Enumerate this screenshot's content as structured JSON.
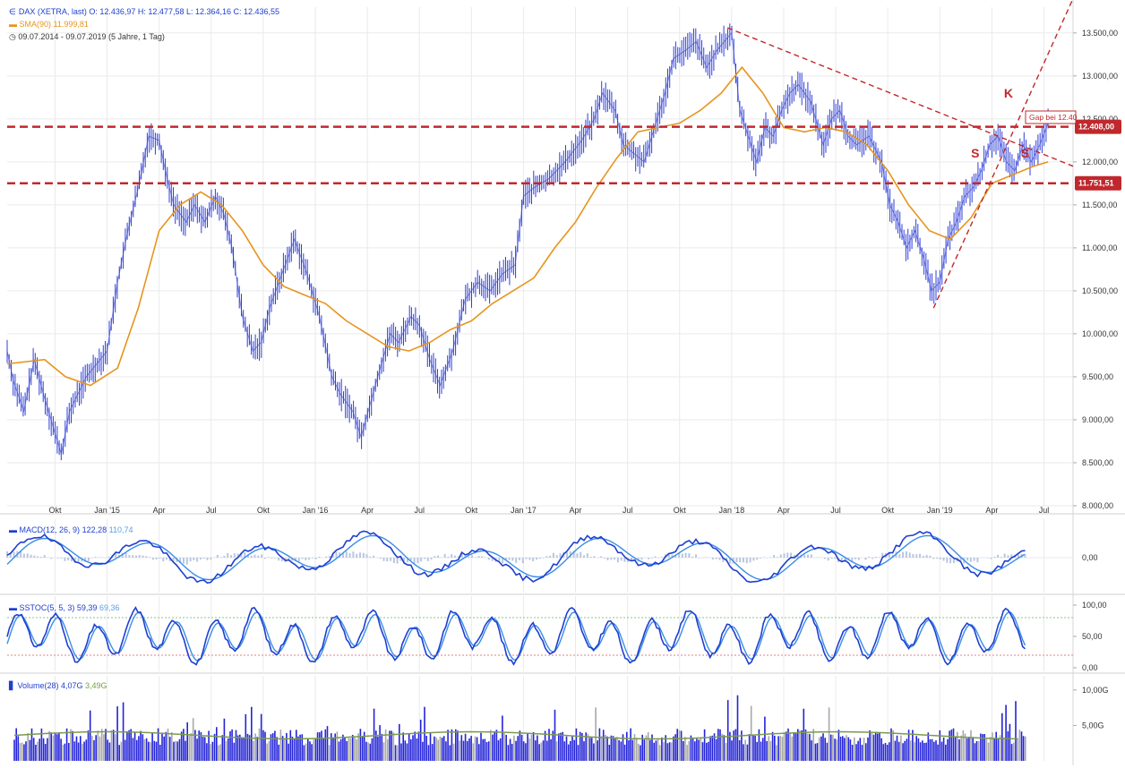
{
  "chart_data": [
    {
      "type": "line",
      "panel": "price",
      "title": "DAX (XETRA, last)",
      "ohlc_label": "O: 12.436,97  H: 12.477,58  L: 12.364,16  C: 12.436,55",
      "sma_label": "SMA(90)",
      "sma_value": "11.999,81",
      "period_label": "09.07.2014 - 09.07.2019  (5 Jahre, 1 Tag)",
      "ylim": [
        8000,
        13800
      ],
      "y_ticks": [
        "13.500,00",
        "13.000,00",
        "12.500,00",
        "12.000,00",
        "11.500,00",
        "11.000,00",
        "10.500,00",
        "10.000,00",
        "9.500,00",
        "9.000,00",
        "8.500,00",
        "8.000,00"
      ],
      "y_tick_values": [
        13500,
        13000,
        12500,
        12000,
        11500,
        11000,
        10500,
        10000,
        9500,
        9000,
        8500,
        8000
      ],
      "x_ticks": [
        "Okt",
        "Jan '15",
        "Apr",
        "Jul",
        "Okt",
        "Jan '16",
        "Apr",
        "Jul",
        "Okt",
        "Jan '17",
        "Apr",
        "Jul",
        "Okt",
        "Jan '18",
        "Apr",
        "Jul",
        "Okt",
        "Jan '19",
        "Apr",
        "Jul"
      ],
      "x_tick_values": [
        2014.75,
        2015.0,
        2015.25,
        2015.5,
        2015.75,
        2016.0,
        2016.25,
        2016.5,
        2016.75,
        2017.0,
        2017.25,
        2017.5,
        2017.75,
        2018.0,
        2018.25,
        2018.5,
        2018.75,
        2019.0,
        2019.25,
        2019.5
      ],
      "x_range": [
        2014.52,
        2019.64
      ],
      "series": [
        {
          "name": "DAX (XETRA, last)",
          "x": [
            2014.52,
            2014.55,
            2014.6,
            2014.65,
            2014.7,
            2014.78,
            2014.82,
            2014.9,
            2015.0,
            2015.05,
            2015.1,
            2015.15,
            2015.2,
            2015.25,
            2015.28,
            2015.32,
            2015.38,
            2015.42,
            2015.47,
            2015.52,
            2015.56,
            2015.6,
            2015.65,
            2015.7,
            2015.74,
            2015.78,
            2015.84,
            2015.9,
            2015.96,
            2016.02,
            2016.08,
            2016.12,
            2016.18,
            2016.22,
            2016.3,
            2016.36,
            2016.4,
            2016.46,
            2016.5,
            2016.55,
            2016.6,
            2016.66,
            2016.72,
            2016.78,
            2016.84,
            2016.9,
            2016.96,
            2017.0,
            2017.05,
            2017.12,
            2017.2,
            2017.28,
            2017.34,
            2017.38,
            2017.44,
            2017.48,
            2017.53,
            2017.58,
            2017.63,
            2017.68,
            2017.72,
            2017.78,
            2017.83,
            2017.88,
            2017.93,
            2018.0,
            2018.04,
            2018.08,
            2018.12,
            2018.16,
            2018.2,
            2018.24,
            2018.28,
            2018.32,
            2018.38,
            2018.44,
            2018.48,
            2018.52,
            2018.56,
            2018.6,
            2018.66,
            2018.72,
            2018.76,
            2018.8,
            2018.84,
            2018.88,
            2018.92,
            2018.96,
            2019.0,
            2019.04,
            2019.08,
            2019.12,
            2019.16,
            2019.2,
            2019.24,
            2019.28,
            2019.32,
            2019.36,
            2019.4,
            2019.44,
            2019.48,
            2019.52
          ],
          "values": [
            9800,
            9450,
            9100,
            9700,
            9250,
            8600,
            9100,
            9500,
            9800,
            10600,
            11200,
            11700,
            12300,
            12250,
            11900,
            11500,
            11300,
            11500,
            11300,
            11600,
            11400,
            11000,
            10200,
            9800,
            9900,
            10300,
            10700,
            11100,
            10700,
            10200,
            9500,
            9300,
            9100,
            8800,
            9500,
            10000,
            9900,
            10200,
            10100,
            9700,
            9400,
            9800,
            10400,
            10600,
            10500,
            10700,
            10800,
            11600,
            11700,
            11800,
            12000,
            12250,
            12500,
            12800,
            12600,
            12200,
            12100,
            12000,
            12400,
            12800,
            13200,
            13300,
            13400,
            13100,
            13300,
            13500,
            12600,
            12300,
            12000,
            12400,
            12300,
            12600,
            12800,
            12900,
            12700,
            12200,
            12500,
            12600,
            12300,
            12200,
            12300,
            12000,
            11500,
            11300,
            11000,
            11200,
            10900,
            10500,
            10600,
            11100,
            11300,
            11600,
            11700,
            11900,
            12200,
            12300,
            12000,
            11900,
            12200,
            12000,
            12200,
            12450
          ]
        },
        {
          "name": "SMA(90)",
          "x": [
            2014.52,
            2014.7,
            2014.8,
            2014.92,
            2015.05,
            2015.15,
            2015.25,
            2015.35,
            2015.45,
            2015.55,
            2015.65,
            2015.75,
            2015.85,
            2015.95,
            2016.05,
            2016.15,
            2016.25,
            2016.35,
            2016.45,
            2016.55,
            2016.65,
            2016.75,
            2016.85,
            2016.95,
            2017.05,
            2017.15,
            2017.25,
            2017.35,
            2017.45,
            2017.55,
            2017.65,
            2017.75,
            2017.85,
            2017.95,
            2018.05,
            2018.15,
            2018.25,
            2018.35,
            2018.45,
            2018.55,
            2018.65,
            2018.75,
            2018.85,
            2018.95,
            2019.05,
            2019.15,
            2019.25,
            2019.35,
            2019.45,
            2019.52
          ],
          "values": [
            9650,
            9700,
            9500,
            9400,
            9600,
            10300,
            11200,
            11500,
            11650,
            11500,
            11200,
            10800,
            10550,
            10450,
            10350,
            10150,
            10000,
            9850,
            9800,
            9900,
            10050,
            10150,
            10350,
            10500,
            10650,
            11000,
            11300,
            11700,
            12050,
            12350,
            12400,
            12450,
            12600,
            12800,
            13100,
            12800,
            12400,
            12350,
            12400,
            12350,
            12200,
            11900,
            11500,
            11200,
            11100,
            11350,
            11750,
            11850,
            11950,
            12000
          ]
        }
      ],
      "hlines": [
        {
          "label": "12.408,00",
          "value": 12408
        },
        {
          "label": "11.751,51",
          "value": 11751.51
        }
      ],
      "annotations": [
        "K",
        "S",
        "S"
      ],
      "gap_label": "Gap bei 12.40",
      "colors": {
        "price": "#2f3fd6",
        "sma": "#e6951e",
        "level": "#c0282d",
        "trend": "#c0282d",
        "grid": "#eaeaea"
      }
    },
    {
      "type": "line",
      "panel": "macd",
      "label": "MACD(12, 26, 9)",
      "value1": "122,28",
      "value2": "110,74",
      "y_tick": "0,00",
      "colors": {
        "macd": "#1f3fcf",
        "signal": "#3a8de8",
        "hist": "#b8c6e0"
      }
    },
    {
      "type": "line",
      "panel": "stochastic",
      "label": "SSTOC(5, 5, 3)",
      "value1": "59,39",
      "value2": "69,36",
      "y_ticks": [
        "100,00",
        "50,00",
        "0,00"
      ],
      "y_tick_values": [
        100,
        50,
        0
      ],
      "levels": [
        80,
        20
      ],
      "colors": {
        "k": "#1f3fcf",
        "d": "#3a8de8"
      }
    },
    {
      "type": "bar",
      "panel": "volume",
      "label": "Volume(28)",
      "value1": "4,07G",
      "value2": "3,49G",
      "y_ticks": [
        "10,00G",
        "5,00G"
      ],
      "y_tick_values": [
        10,
        5
      ],
      "colors": {
        "up": "#2323d8",
        "down": "#a8a8a8",
        "avg": "#7a9a50"
      }
    }
  ]
}
